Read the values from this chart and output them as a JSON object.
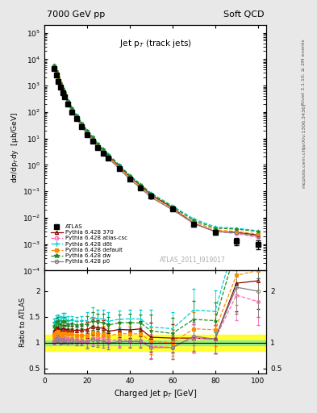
{
  "title_left": "7000 GeV pp",
  "title_right": "Soft QCD",
  "main_title": "Jet p$_T$ (track jets)",
  "ylabel_main": "dσ/dp$_{T}$dy  [μb/GeV]",
  "ylabel_ratio": "Ratio to ATLAS",
  "xlabel": "Charged Jet p$_T$ [GeV]",
  "watermark": "ATLAS_2011_I919017",
  "rivet_label": "Rivet 3.1.10, ≥ 2M events",
  "arxiv_label": "[arXiv:1306.3436]",
  "mcplots_label": "mcplots.cern.ch",
  "atlas_pt": [
    4.5,
    5.5,
    6.5,
    7.5,
    8.5,
    9.5,
    11,
    13,
    15,
    17.5,
    20,
    22.5,
    25,
    27.5,
    30,
    35,
    40,
    45,
    50,
    60,
    70,
    80,
    90,
    100
  ],
  "atlas_val": [
    4500,
    2500,
    1400,
    900,
    550,
    380,
    200,
    100,
    55,
    28,
    14,
    8,
    4.5,
    2.8,
    1.8,
    0.7,
    0.28,
    0.13,
    0.065,
    0.022,
    0.0055,
    0.0028,
    0.0013,
    0.001
  ],
  "atlas_err_lo": [
    0.15,
    0.12,
    0.1,
    0.09,
    0.08,
    0.07,
    0.06,
    0.06,
    0.06,
    0.06,
    0.06,
    0.06,
    0.07,
    0.07,
    0.08,
    0.09,
    0.1,
    0.11,
    0.12,
    0.14,
    0.18,
    0.22,
    0.28,
    0.35
  ],
  "py370_val": [
    5500,
    3200,
    1800,
    1100,
    700,
    480,
    250,
    125,
    68,
    35,
    17.5,
    10.5,
    5.8,
    3.6,
    2.2,
    0.88,
    0.35,
    0.165,
    0.072,
    0.024,
    0.006,
    0.003,
    0.0028,
    0.0022
  ],
  "pyatl_val": [
    4700,
    2750,
    1560,
    950,
    600,
    415,
    215,
    108,
    58,
    29.5,
    14.7,
    8.8,
    4.9,
    3.05,
    1.88,
    0.74,
    0.295,
    0.137,
    0.061,
    0.02,
    0.006,
    0.003,
    0.0025,
    0.0018
  ],
  "pyd6t_val": [
    6200,
    3600,
    2050,
    1280,
    820,
    565,
    285,
    143,
    78,
    40,
    20,
    12,
    6.6,
    4.1,
    2.55,
    1.02,
    0.41,
    0.19,
    0.085,
    0.028,
    0.009,
    0.0045,
    0.004,
    0.0032
  ],
  "pydef_val": [
    5200,
    3020,
    1710,
    1040,
    655,
    452,
    233,
    117,
    63,
    32,
    16,
    9.6,
    5.3,
    3.3,
    2.05,
    0.82,
    0.33,
    0.152,
    0.067,
    0.022,
    0.007,
    0.0035,
    0.003,
    0.0024
  ],
  "pydw_val": [
    6000,
    3500,
    1980,
    1220,
    778,
    538,
    272,
    137,
    74,
    38,
    19,
    11.4,
    6.3,
    3.9,
    2.42,
    0.97,
    0.39,
    0.18,
    0.08,
    0.026,
    0.008,
    0.004,
    0.0037,
    0.003
  ],
  "pyp0_val": [
    4600,
    2680,
    1520,
    920,
    580,
    400,
    207,
    104,
    56,
    28.5,
    14.2,
    8.5,
    4.7,
    2.9,
    1.79,
    0.716,
    0.287,
    0.133,
    0.059,
    0.02,
    0.0062,
    0.003,
    0.0027,
    0.002
  ],
  "color_370": "#8b0000",
  "color_atl": "#ff69b4",
  "color_d6t": "#00ced1",
  "color_def": "#ff8c00",
  "color_dw": "#228b22",
  "color_p0": "#808080",
  "color_atlas": "#000000",
  "band_green": 0.05,
  "band_yellow": 0.15,
  "ylim_main": [
    0.0001,
    200000.0
  ],
  "ylim_ratio": [
    0.4,
    2.4
  ],
  "xlim": [
    0,
    104
  ]
}
